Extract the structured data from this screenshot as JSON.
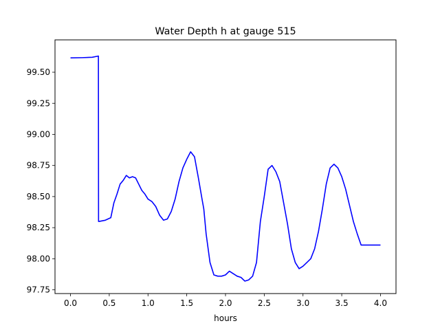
{
  "chart_data": {
    "type": "line",
    "title": "Water Depth h at gauge 515",
    "xlabel": "hours",
    "ylabel": "",
    "xlim": [
      -0.2,
      4.2
    ],
    "ylim": [
      97.72,
      99.76
    ],
    "x_ticks": [
      0.0,
      0.5,
      1.0,
      1.5,
      2.0,
      2.5,
      3.0,
      3.5,
      4.0
    ],
    "x_tick_labels": [
      "0.0",
      "0.5",
      "1.0",
      "1.5",
      "2.0",
      "2.5",
      "3.0",
      "3.5",
      "4.0"
    ],
    "y_ticks": [
      97.75,
      98.0,
      98.25,
      98.5,
      98.75,
      99.0,
      99.25,
      99.5
    ],
    "y_tick_labels": [
      "97.75",
      "98.00",
      "98.25",
      "98.50",
      "98.75",
      "99.00",
      "99.25",
      "99.50"
    ],
    "grid": false,
    "series": [
      {
        "color": "#0000ff",
        "x": [
          0.0,
          0.15,
          0.28,
          0.36,
          0.362,
          0.37,
          0.45,
          0.52,
          0.56,
          0.6,
          0.64,
          0.68,
          0.72,
          0.76,
          0.8,
          0.84,
          0.88,
          0.92,
          0.96,
          1.0,
          1.05,
          1.1,
          1.15,
          1.2,
          1.25,
          1.3,
          1.35,
          1.4,
          1.45,
          1.5,
          1.55,
          1.6,
          1.65,
          1.7,
          1.72,
          1.75,
          1.8,
          1.85,
          1.9,
          1.95,
          2.0,
          2.05,
          2.1,
          2.15,
          2.2,
          2.25,
          2.3,
          2.35,
          2.4,
          2.45,
          2.5,
          2.55,
          2.6,
          2.65,
          2.7,
          2.75,
          2.8,
          2.85,
          2.9,
          2.95,
          3.0,
          3.05,
          3.1,
          3.15,
          3.2,
          3.25,
          3.3,
          3.35,
          3.4,
          3.45,
          3.5,
          3.55,
          3.6,
          3.65,
          3.7,
          3.75,
          3.8,
          3.85,
          3.9,
          3.95,
          4.0
        ],
        "y": [
          99.615,
          99.617,
          99.62,
          99.63,
          98.3,
          98.3,
          98.31,
          98.33,
          98.45,
          98.52,
          98.6,
          98.63,
          98.67,
          98.65,
          98.66,
          98.65,
          98.6,
          98.55,
          98.52,
          98.48,
          98.46,
          98.42,
          98.35,
          98.31,
          98.32,
          98.38,
          98.48,
          98.62,
          98.73,
          98.8,
          98.86,
          98.82,
          98.65,
          98.47,
          98.4,
          98.2,
          97.97,
          97.87,
          97.86,
          97.86,
          97.87,
          97.9,
          97.88,
          97.86,
          97.85,
          97.82,
          97.83,
          97.86,
          97.97,
          98.3,
          98.5,
          98.72,
          98.75,
          98.7,
          98.62,
          98.45,
          98.28,
          98.08,
          97.97,
          97.92,
          97.94,
          97.97,
          98.0,
          98.08,
          98.22,
          98.4,
          98.6,
          98.73,
          98.76,
          98.73,
          98.66,
          98.56,
          98.43,
          98.3,
          98.2,
          98.11,
          98.11,
          98.11,
          98.11,
          98.11,
          98.11
        ]
      }
    ]
  }
}
